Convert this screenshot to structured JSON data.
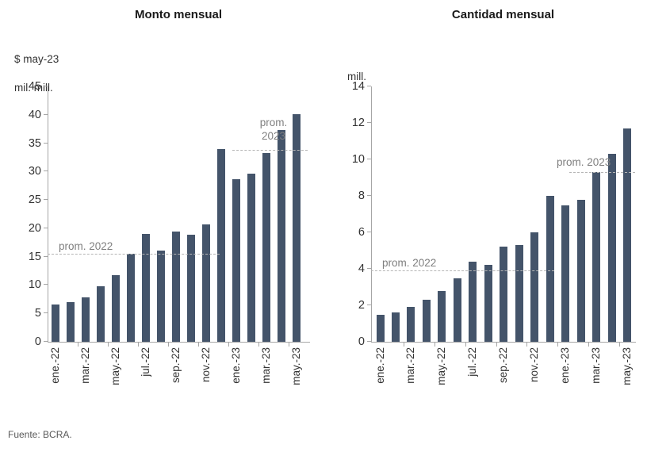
{
  "figure": {
    "source_note": "Fuente: BCRA.",
    "bar_color": "#44546A",
    "dashed_line_color": "#b5b5b5",
    "avg_label_color": "#7f7f7f"
  },
  "chart_data": [
    {
      "type": "bar",
      "title": "Monto mensual",
      "unit_label_lines": [
        "$ may-23",
        "mil. mill."
      ],
      "ylim": [
        0,
        45
      ],
      "ytick_step": 5,
      "grid": false,
      "x_tick_labels": [
        "ene.-22",
        "mar.-22",
        "may.-22",
        "jul.-22",
        "sep.-22",
        "nov.-22",
        "ene.-23",
        "mar.-23",
        "may.-23"
      ],
      "x_tick_bar_indices": [
        0,
        2,
        4,
        6,
        8,
        10,
        12,
        14,
        16
      ],
      "values": [
        6.6,
        7.0,
        7.8,
        9.8,
        11.7,
        15.5,
        19.0,
        16.1,
        19.4,
        18.8,
        20.7,
        33.9,
        28.6,
        29.6,
        33.2,
        37.3,
        40.1
      ],
      "avg_lines": [
        {
          "label": "prom. 2022",
          "value": 15.5
        },
        {
          "label": "prom. 2023",
          "value": 33.8
        }
      ]
    },
    {
      "type": "bar",
      "title": "Cantidad mensual",
      "unit_label_lines": [
        "mill."
      ],
      "ylim": [
        0,
        14
      ],
      "ytick_step": 2,
      "grid": false,
      "x_tick_labels": [
        "ene.-22",
        "mar.-22",
        "may.-22",
        "jul.-22",
        "sep.-22",
        "nov.-22",
        "ene.-23",
        "mar.-23",
        "may.-23"
      ],
      "x_tick_bar_indices": [
        0,
        2,
        4,
        6,
        8,
        10,
        12,
        14,
        16
      ],
      "values": [
        1.5,
        1.6,
        1.9,
        2.3,
        2.8,
        3.5,
        4.4,
        4.2,
        5.2,
        5.3,
        6.0,
        8.0,
        7.5,
        7.8,
        9.3,
        10.3,
        11.7
      ],
      "avg_lines": [
        {
          "label": "prom. 2022",
          "value": 3.9
        },
        {
          "label": "prom. 2023",
          "value": 9.3
        }
      ]
    }
  ]
}
